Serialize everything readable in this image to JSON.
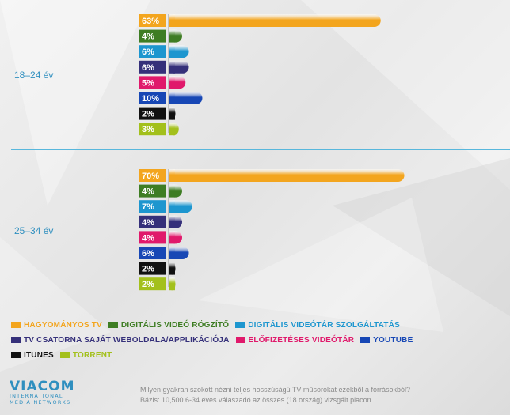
{
  "chart_data": {
    "type": "bar",
    "orientation": "horizontal",
    "categories": [
      "HAGYOMÁNYOS TV",
      "DIGITÁLIS VIDEÓ RÖGZÍTŐ",
      "DIGITÁLIS VIDEÓTÁR SZOLGÁLTATÁS",
      "TV CSATORNA SAJÁT WEBOLDALA/APPLIKÁCIÓJA",
      "ELŐFIZETÉSES VIDEÓTÁR",
      "YOUTUBE",
      "ITUNES",
      "TORRENT"
    ],
    "groups": [
      {
        "label": "18–24 év",
        "values": [
          63,
          4,
          6,
          6,
          5,
          10,
          2,
          3
        ],
        "value_labels": [
          "63%",
          "4%",
          "6%",
          "6%",
          "5%",
          "10%",
          "2%",
          "3%"
        ]
      },
      {
        "label": "25–34 év",
        "values": [
          70,
          4,
          7,
          4,
          4,
          6,
          2,
          2
        ],
        "value_labels": [
          "70%",
          "4%",
          "7%",
          "4%",
          "4%",
          "6%",
          "2%",
          "2%"
        ]
      }
    ],
    "colors": [
      "#f3a51e",
      "#3e7d23",
      "#1d96cf",
      "#35307a",
      "#e0196b",
      "#1747b5",
      "#111111",
      "#a3c01c"
    ],
    "label_text_color": "#2f8fbf",
    "value_unit": "%",
    "legend_position": "bottom-left",
    "grid": false
  },
  "legend": {
    "rows": [
      [
        {
          "label": "HAGYOMÁNYOS TV",
          "color": "#f3a51e"
        },
        {
          "label": "DIGITÁLIS VIDEÓ RÖGZÍTŐ",
          "color": "#3e7d23"
        },
        {
          "label": "DIGITÁLIS VIDEÓTÁR SZOLGÁLTATÁS",
          "color": "#1d96cf"
        }
      ],
      [
        {
          "label": "TV CSATORNA SAJÁT WEBOLDALA/APPLIKÁCIÓJA",
          "color": "#35307a"
        },
        {
          "label": "ELŐFIZETÉSES VIDEÓTÁR",
          "color": "#e0196b"
        },
        {
          "label": "YOUTUBE",
          "color": "#1747b5"
        }
      ],
      [
        {
          "label": "ITUNES",
          "color": "#111111"
        },
        {
          "label": "TORRENT",
          "color": "#a3c01c"
        }
      ]
    ]
  },
  "logo": {
    "main": "VIACOM",
    "sub1": "INTERNATIONAL",
    "sub2": "MEDIA NETWORKS"
  },
  "footnote": {
    "line1": "Milyen gyakran szokott nézni teljes hosszúságú TV műsorokat ezekből a forrásokból?",
    "line2": "Bázis: 10,500 6-34 éves válaszadó az összes (18 ország) vizsgált piacon"
  }
}
